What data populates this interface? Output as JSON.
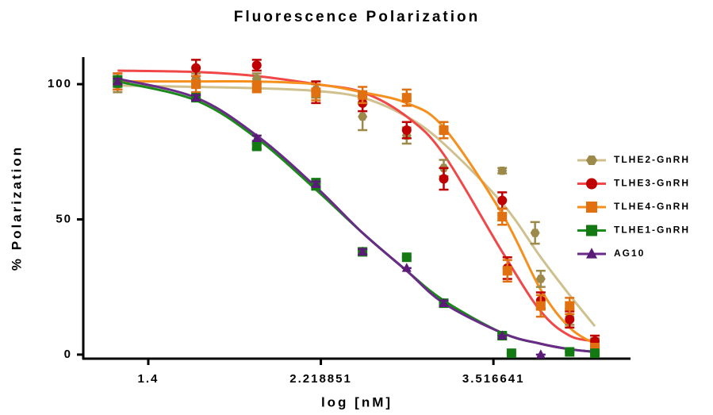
{
  "chart_data": {
    "type": "scatter",
    "title": "Fluorescence Polarization",
    "x_label": "log [nM]",
    "y_label": "% Polarization",
    "xscale": "log",
    "xlim": [
      1.177,
      5.07
    ],
    "xticks": [
      1.4,
      2.218851,
      3.516641
    ],
    "ylim": [
      -1.5,
      110
    ],
    "yticks": [
      0,
      50,
      100
    ],
    "fit_x": [
      1.29,
      1.59,
      1.87,
      2.19,
      2.48,
      2.79,
      3.08,
      3.6,
      3.99,
      4.31,
      4.61
    ],
    "series": [
      {
        "name": "TLHE2-GnRH",
        "color": "#9c8a4a",
        "line_color": "#cfc08e",
        "marker": "hexagon",
        "x": [
          1.29,
          1.59,
          1.87,
          2.19,
          2.48,
          2.79,
          3.08,
          3.6,
          3.93,
          3.99,
          4.31,
          4.61
        ],
        "values": [
          100,
          102,
          102,
          98,
          88,
          81,
          69,
          68,
          45,
          28,
          14,
          3
        ],
        "errors": [
          3,
          2,
          2,
          3,
          5,
          3,
          3,
          1,
          4,
          3,
          3,
          3
        ],
        "fit": [
          99.5,
          99,
          98.5,
          97.5,
          95,
          88,
          78,
          56,
          36,
          22,
          10.5
        ]
      },
      {
        "name": "TLHE3-GnRH",
        "color": "#c00000",
        "line_color": "#f04848",
        "marker": "circle",
        "x": [
          1.29,
          1.59,
          1.87,
          2.19,
          2.48,
          2.79,
          3.08,
          3.6,
          3.65,
          3.99,
          4.31,
          4.61
        ],
        "values": [
          101,
          106,
          107,
          97,
          93,
          83,
          65,
          57,
          32,
          20,
          13,
          5
        ],
        "errors": [
          3,
          3,
          2,
          4,
          3,
          3,
          4,
          3,
          4,
          3,
          3,
          2
        ],
        "fit": [
          105,
          104.5,
          103,
          100,
          97,
          88,
          74,
          38,
          16,
          7,
          5
        ]
      },
      {
        "name": "TLHE4-GnRH",
        "color": "#e07010",
        "line_color": "#f5901f",
        "marker": "square",
        "x": [
          1.29,
          1.59,
          1.87,
          2.19,
          2.48,
          2.79,
          3.08,
          3.6,
          3.65,
          3.99,
          4.31,
          4.61
        ],
        "values": [
          101,
          100,
          99,
          97,
          96,
          95,
          83,
          51,
          31,
          18,
          18,
          2
        ],
        "errors": [
          3,
          3,
          2,
          3,
          3,
          3,
          3,
          3,
          4,
          4,
          3,
          2
        ],
        "fit": [
          101,
          101,
          101,
          100,
          97,
          93,
          84,
          52,
          24,
          10,
          4
        ]
      },
      {
        "name": "TLHE1-GnRH",
        "color": "#137a13",
        "line_color": "#1a8a1a",
        "marker": "square",
        "x": [
          1.29,
          1.59,
          1.87,
          2.19,
          2.48,
          2.79,
          3.08,
          3.6,
          3.69,
          4.31,
          4.61
        ],
        "values": [
          101,
          95,
          77,
          63,
          38,
          36,
          19,
          7,
          0.5,
          1,
          0.5
        ],
        "errors": [
          2,
          1,
          1,
          2,
          1,
          0,
          1,
          1,
          0,
          0,
          0
        ],
        "fit": [
          101,
          94,
          80,
          61,
          45,
          31,
          20,
          8,
          4,
          2,
          1
        ]
      },
      {
        "name": "AG10",
        "color": "#5a1a78",
        "line_color": "#6a2a88",
        "marker": "triangle",
        "x": [
          1.29,
          1.59,
          1.87,
          2.19,
          2.48,
          2.79,
          3.08,
          3.6,
          3.99
        ],
        "values": [
          101,
          95,
          80,
          63,
          38,
          32,
          19,
          7,
          0
        ],
        "errors": [
          1,
          1,
          1,
          1,
          1,
          0,
          1,
          0,
          0
        ],
        "fit": [
          102,
          95,
          81,
          62,
          45,
          31,
          19,
          8,
          4,
          2,
          1
        ]
      }
    ]
  }
}
